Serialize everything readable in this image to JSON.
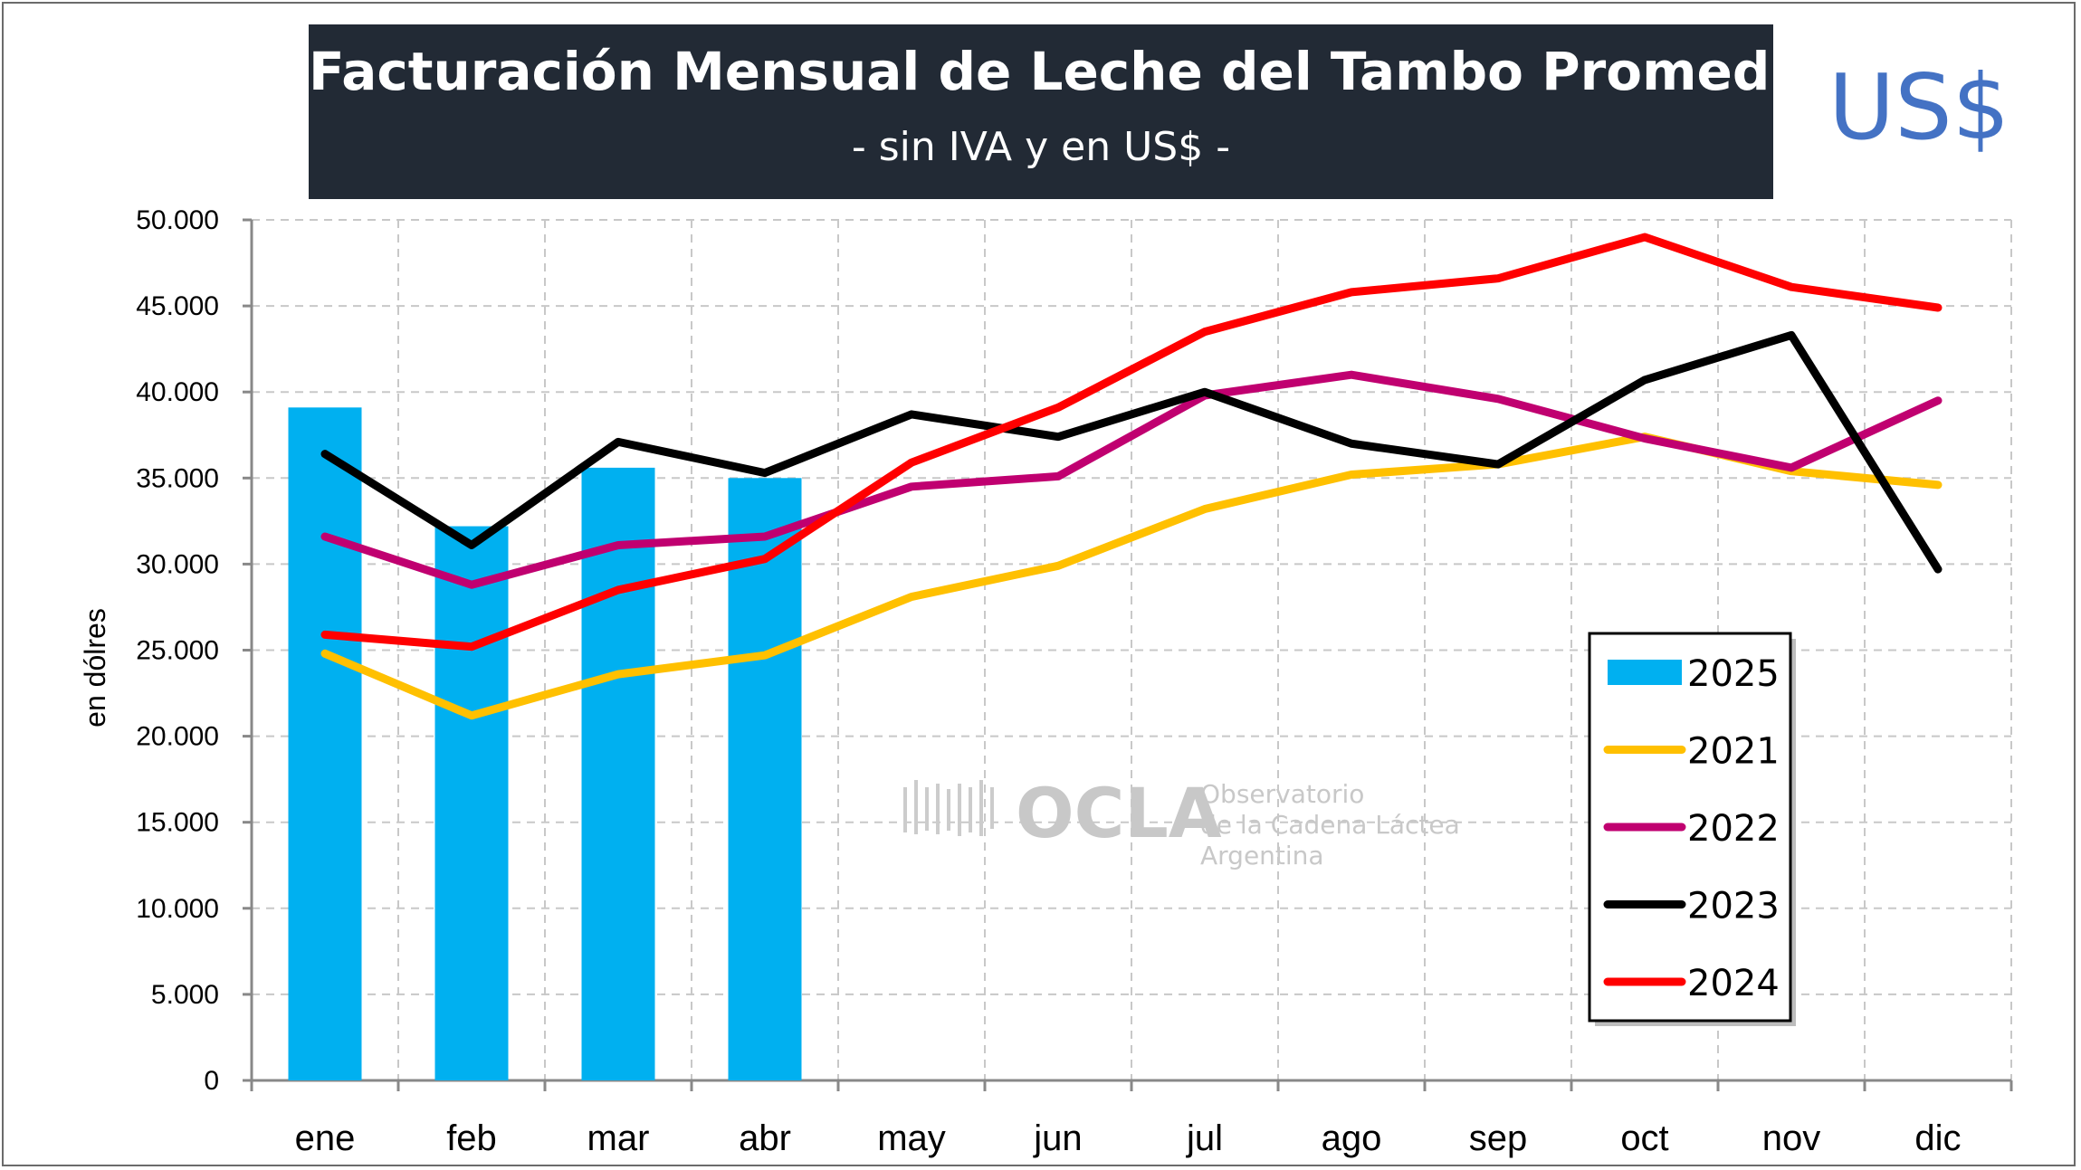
{
  "header": {
    "title": "Facturación Mensual de Leche del Tambo Promedio",
    "subtitle": "- sin IVA y en US$ -",
    "currency_badge": "US$"
  },
  "watermark": {
    "name": "OCLA",
    "line1": "Observatorio",
    "line2": "de la Cadena Láctea",
    "line3": "Argentina"
  },
  "chart_data": {
    "type": "bar",
    "title": "Facturación Mensual de Leche del Tambo Promedio",
    "subtitle": "- sin IVA y en US$ -",
    "xlabel": "",
    "ylabel": "en dólres",
    "ylim": [
      0,
      50000
    ],
    "ytick_step": 5000,
    "yticks": [
      "0",
      "5.000",
      "10.000",
      "15.000",
      "20.000",
      "25.000",
      "30.000",
      "35.000",
      "40.000",
      "45.000",
      "50.000"
    ],
    "grid": true,
    "legend_position": "bottom-right",
    "categories": [
      "ene",
      "feb",
      "mar",
      "abr",
      "may",
      "jun",
      "jul",
      "ago",
      "sep",
      "oct",
      "nov",
      "dic"
    ],
    "series": [
      {
        "name": "2025",
        "type": "bar",
        "color": "#00b0f0",
        "values": [
          39100,
          32200,
          35600,
          35000,
          null,
          null,
          null,
          null,
          null,
          null,
          null,
          null
        ]
      },
      {
        "name": "2021",
        "type": "line",
        "color": "#ffc000",
        "values": [
          24800,
          21200,
          23600,
          24700,
          28100,
          29900,
          33200,
          35200,
          35800,
          37400,
          35400,
          34600
        ]
      },
      {
        "name": "2022",
        "type": "line",
        "color": "#c00070",
        "values": [
          31600,
          28800,
          31100,
          31600,
          34500,
          35100,
          39800,
          41000,
          39600,
          37300,
          35600,
          39500
        ]
      },
      {
        "name": "2023",
        "type": "line",
        "color": "#000000",
        "values": [
          36400,
          31100,
          37100,
          35300,
          38700,
          37400,
          40000,
          37000,
          35800,
          40700,
          43300,
          29700
        ]
      },
      {
        "name": "2024",
        "type": "line",
        "color": "#ff0000",
        "values": [
          25900,
          25200,
          28500,
          30300,
          35900,
          39100,
          43500,
          45800,
          46600,
          49000,
          46100,
          44900
        ]
      }
    ]
  }
}
